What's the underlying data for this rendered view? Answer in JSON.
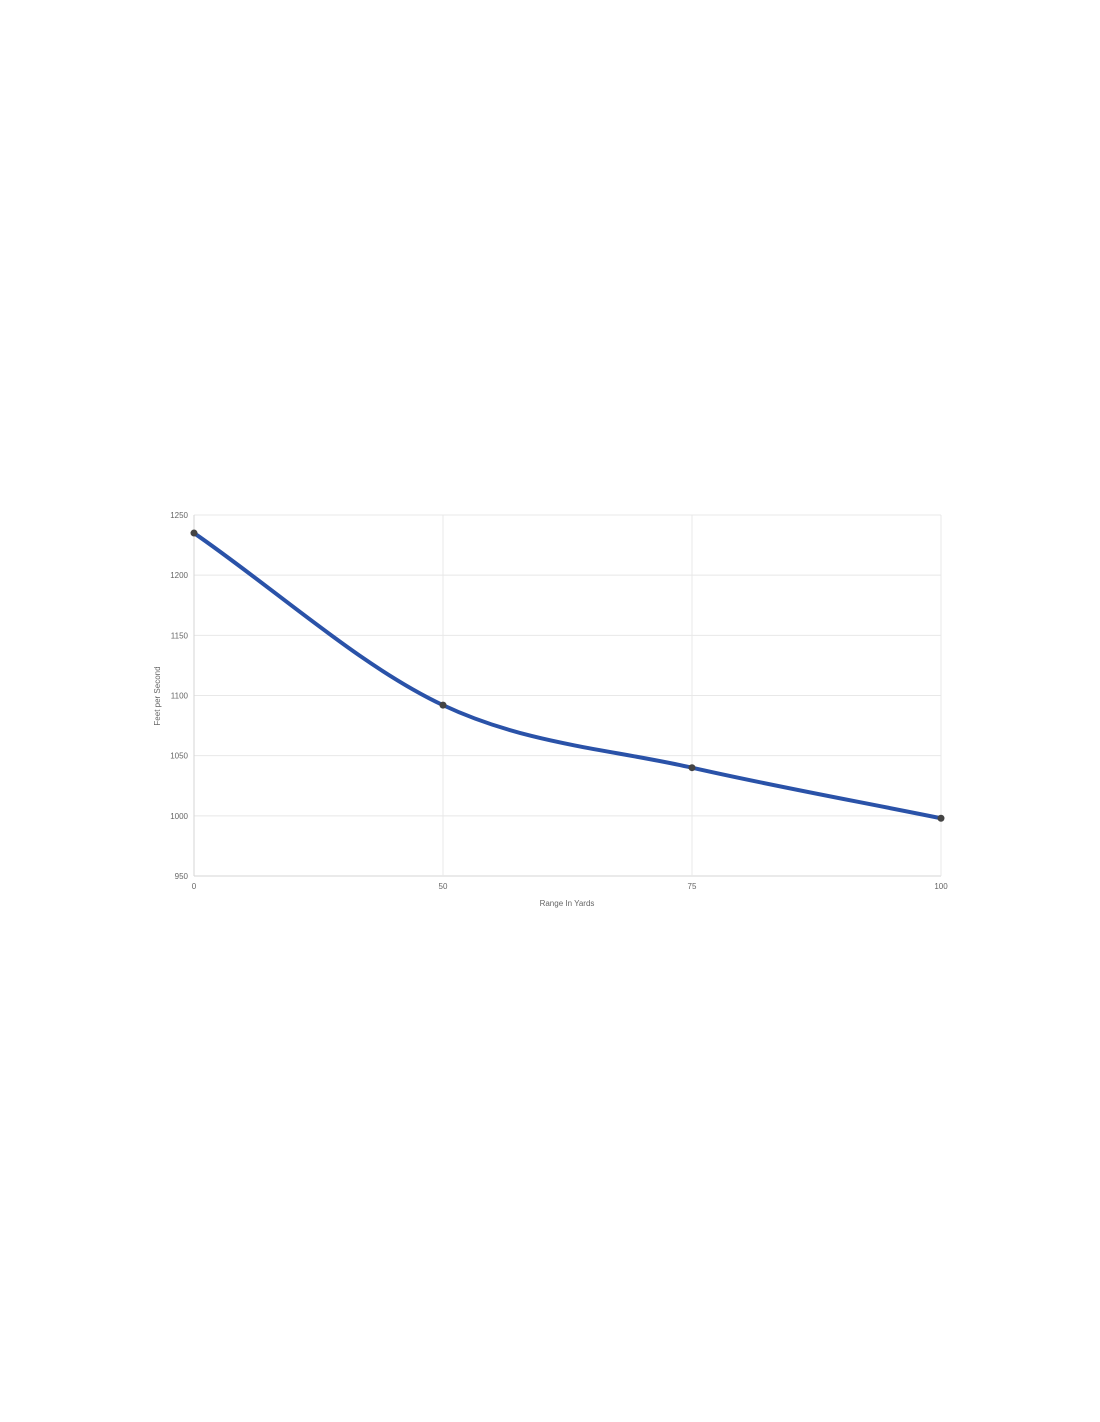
{
  "chart_data": {
    "type": "line",
    "title": "",
    "xlabel": "Range In Yards",
    "ylabel": "Feet per Second",
    "categories": [
      "0",
      "50",
      "75",
      "100"
    ],
    "series": [
      {
        "values": [
          1235,
          1092,
          1040,
          998
        ],
        "color": "#2a52a8",
        "marker_color": "#444444"
      }
    ],
    "ylim": [
      950,
      1250
    ],
    "yticks": [
      "950",
      "1000",
      "1050",
      "1100",
      "1150",
      "1200",
      "1250"
    ],
    "grid": true,
    "smooth": true
  }
}
